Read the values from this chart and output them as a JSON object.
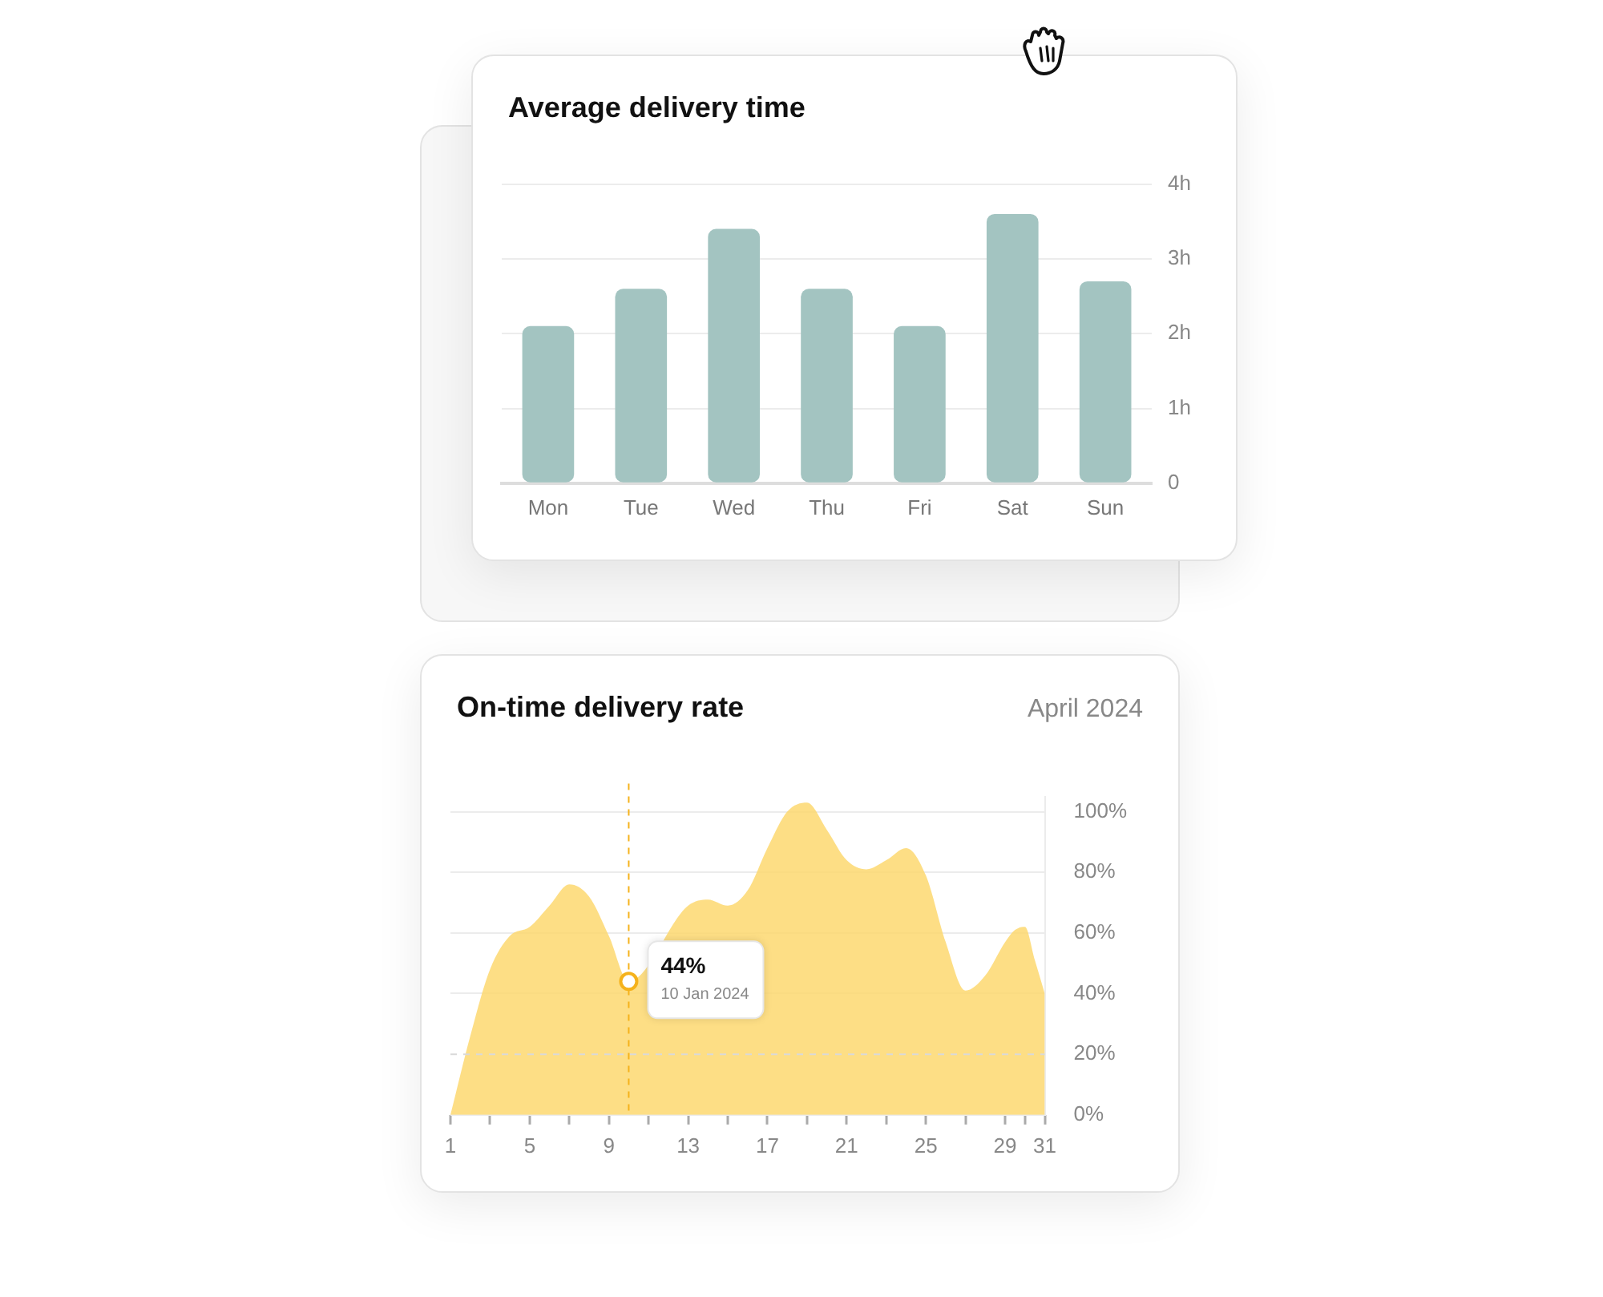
{
  "chart_data": [
    {
      "type": "bar",
      "title": "Average delivery time",
      "categories": [
        "Mon",
        "Tue",
        "Wed",
        "Thu",
        "Fri",
        "Sat",
        "Sun"
      ],
      "values": [
        2.1,
        2.6,
        3.4,
        2.6,
        2.1,
        3.6,
        2.7
      ],
      "color": "#a3c4c1",
      "ylim": [
        0,
        4
      ],
      "yticks": [
        0,
        {
          "value": 1,
          "label": "1h"
        },
        {
          "value": 2,
          "label": "2h"
        },
        {
          "value": 3,
          "label": "3h"
        },
        {
          "value": 4,
          "label": "4h"
        }
      ],
      "grid": "y"
    },
    {
      "type": "area",
      "title": "On-time delivery rate",
      "subtitle": "April 2024",
      "x": [
        1,
        2,
        3,
        4,
        5,
        6,
        7,
        8,
        9,
        10,
        11,
        12,
        13,
        14,
        15,
        16,
        17,
        18,
        19,
        20,
        21,
        22,
        23,
        24,
        25,
        26,
        27,
        28,
        29,
        29.5,
        30,
        30.5,
        31
      ],
      "values": [
        0,
        26,
        48,
        59,
        62,
        69,
        76,
        72,
        59,
        44,
        null,
        null,
        69,
        71,
        69,
        74,
        88,
        100,
        103,
        94,
        84,
        81,
        84,
        88,
        79,
        57,
        41,
        46,
        57,
        61,
        62,
        51,
        40
      ],
      "color": "#fdd66a",
      "xlim": [
        1,
        31
      ],
      "xticks": [
        1,
        {
          "value": 3,
          "label": null
        },
        5,
        {
          "value": 7,
          "label": null
        },
        9,
        {
          "value": 11,
          "label": null
        },
        13,
        {
          "value": 15,
          "label": null
        },
        17,
        {
          "value": 19,
          "label": null
        },
        21,
        {
          "value": 23,
          "label": null
        },
        25,
        {
          "value": 27,
          "label": null
        },
        29,
        {
          "value": 30,
          "label": null
        },
        31
      ],
      "ylim": [
        0,
        105
      ],
      "yticks": [
        {
          "value": 0,
          "label": "0%"
        },
        {
          "value": 20,
          "label": "20%"
        },
        {
          "value": 40,
          "label": "40%"
        },
        {
          "value": 60,
          "label": "60%"
        },
        {
          "value": 80,
          "label": "80%"
        },
        {
          "value": 100,
          "label": "100%"
        }
      ],
      "grid": "y",
      "ref_lines": [
        {
          "axis": "x",
          "value": 10,
          "color": "#f5b21b",
          "line_style": "dashed"
        },
        {
          "axis": "y",
          "value": 20,
          "color": "#d9d9d9",
          "line_style": "dashed"
        }
      ],
      "annotations": [
        {
          "text": "44%",
          "x": 10,
          "y": 44
        },
        "10 Jan 2024"
      ]
    }
  ]
}
